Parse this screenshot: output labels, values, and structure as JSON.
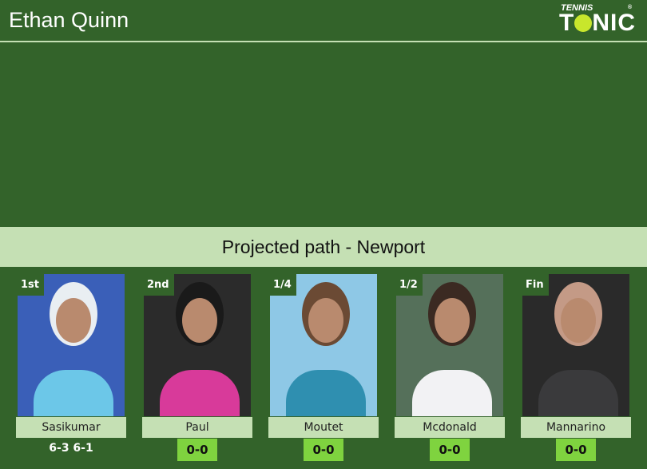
{
  "header": {
    "title": "Ethan Quinn",
    "logo_top": "TENNIS",
    "logo_main": "TONIC"
  },
  "banner": "Projected path - Newport",
  "colors": {
    "background": "#33632a",
    "accent_light": "#c5e0b4",
    "score_box": "#7fd33f"
  },
  "matches": [
    {
      "round": "1st",
      "name": "Sasikumar",
      "result": "6-3 6-1",
      "photo_colors": [
        "#3a5fb8",
        "#6cc7e8",
        "#e9eef2"
      ]
    },
    {
      "round": "2nd",
      "name": "Paul",
      "score": "0-0",
      "photo_colors": [
        "#2b2b2b",
        "#d83a9a",
        "#1a1a1a"
      ]
    },
    {
      "round": "1/4",
      "name": "Moutet",
      "score": "0-0",
      "photo_colors": [
        "#8ec8e6",
        "#2f8fb0",
        "#6b4a34"
      ]
    },
    {
      "round": "1/2",
      "name": "Mcdonald",
      "score": "0-0",
      "photo_colors": [
        "#55705a",
        "#f2f2f4",
        "#3b2a22"
      ]
    },
    {
      "round": "Fin",
      "name": "Mannarino",
      "score": "0-0",
      "photo_colors": [
        "#2a2a2a",
        "#3a3a3c",
        "#c49a86"
      ]
    }
  ]
}
